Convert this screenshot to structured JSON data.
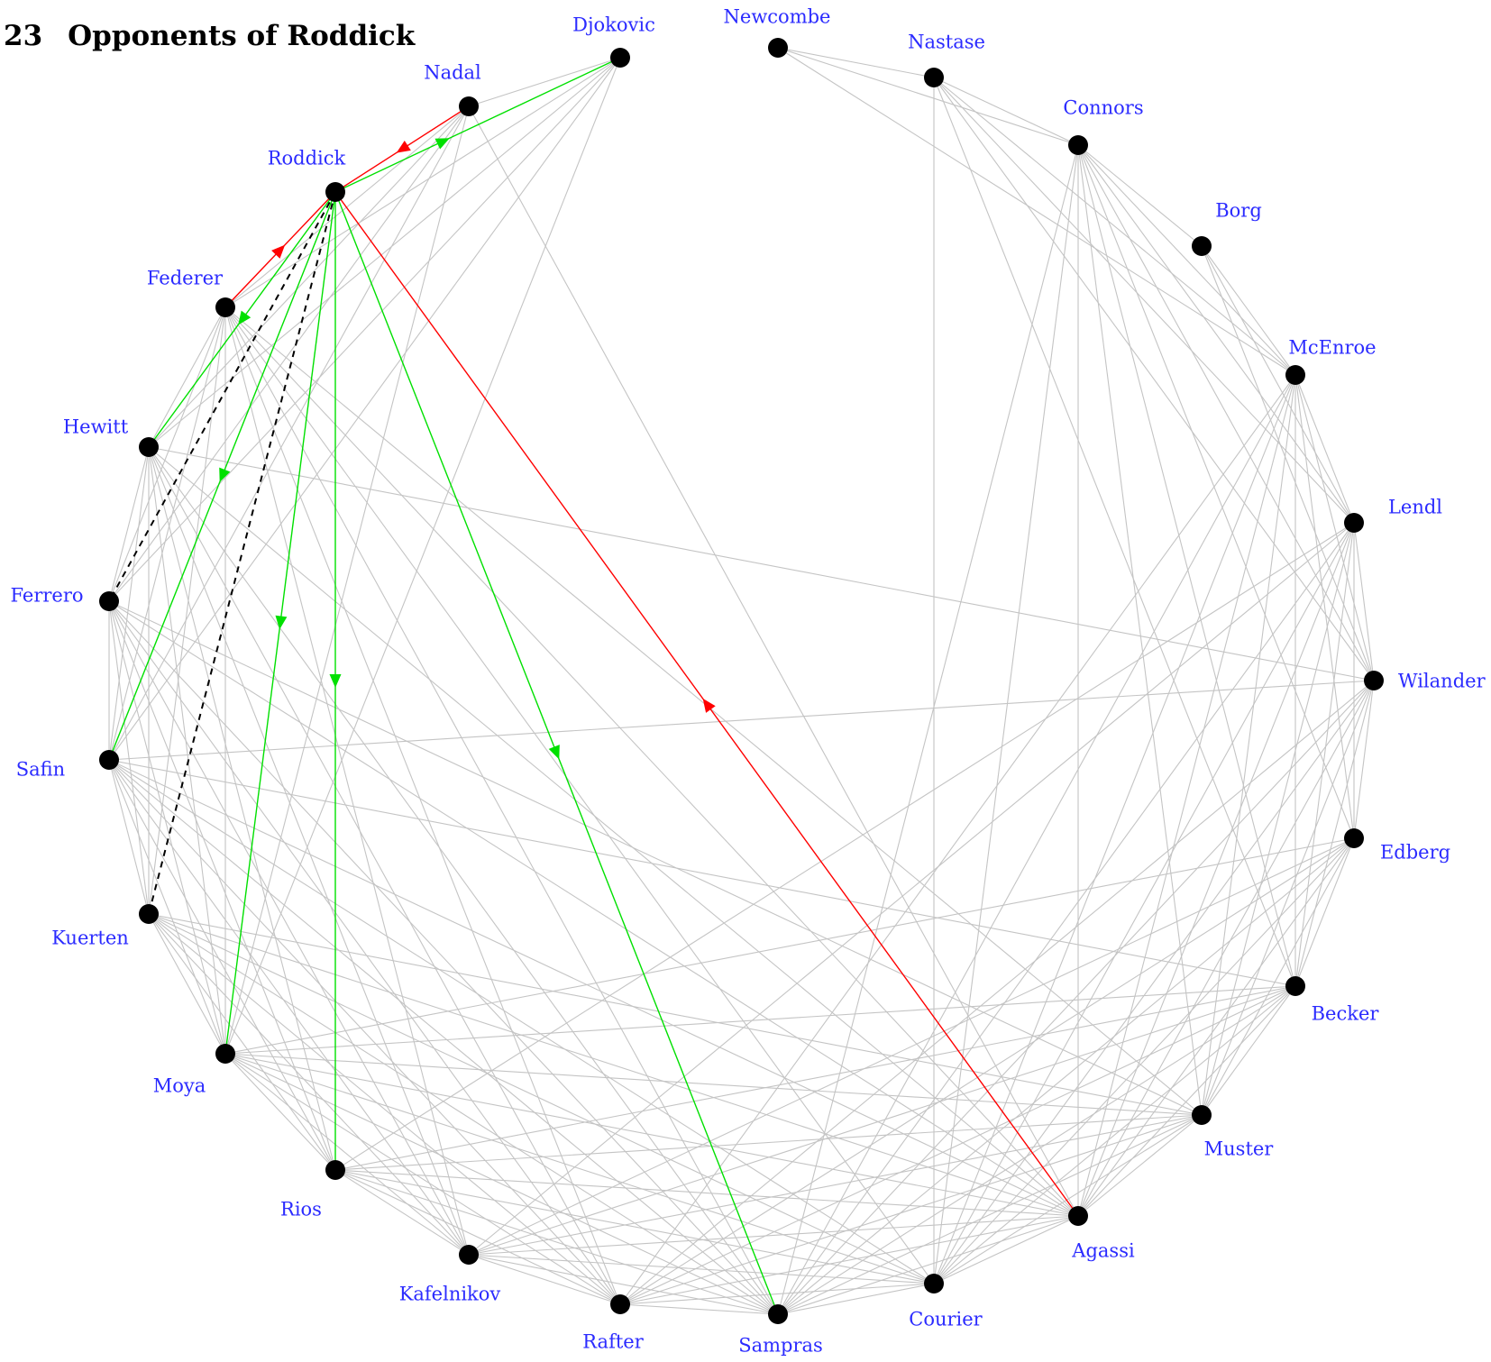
{
  "heading": {
    "number": "23",
    "title": "Opponents of Roddick"
  },
  "colors": {
    "node": "#000000",
    "label": "#2b2bff",
    "edge": "#c4c4c4",
    "win": "#00e000",
    "loss": "#ff0000",
    "dashed": "#000000"
  },
  "players": [
    "Djokovic",
    "Newcombe",
    "Nastase",
    "Connors",
    "Borg",
    "McEnroe",
    "Lendl",
    "Wilander",
    "Edberg",
    "Becker",
    "Muster",
    "Agassi",
    "Courier",
    "Sampras",
    "Rafter",
    "Kafelnikov",
    "Rios",
    "Moya",
    "Kuerten",
    "Safin",
    "Ferrero",
    "Hewitt",
    "Federer",
    "Roddick",
    "Nadal"
  ],
  "edges": [
    [
      "Djokovic",
      "Nadal"
    ],
    [
      "Djokovic",
      "Federer"
    ],
    [
      "Djokovic",
      "Hewitt"
    ],
    [
      "Djokovic",
      "Ferrero"
    ],
    [
      "Djokovic",
      "Safin"
    ],
    [
      "Djokovic",
      "Moya"
    ],
    [
      "Nadal",
      "Federer"
    ],
    [
      "Nadal",
      "Hewitt"
    ],
    [
      "Nadal",
      "Ferrero"
    ],
    [
      "Nadal",
      "Safin"
    ],
    [
      "Nadal",
      "Moya"
    ],
    [
      "Nadal",
      "Agassi"
    ],
    [
      "Newcombe",
      "Nastase"
    ],
    [
      "Newcombe",
      "Connors"
    ],
    [
      "Newcombe",
      "McEnroe"
    ],
    [
      "Nastase",
      "Connors"
    ],
    [
      "Nastase",
      "McEnroe"
    ],
    [
      "Nastase",
      "Lendl"
    ],
    [
      "Nastase",
      "Becker"
    ],
    [
      "Nastase",
      "Courier"
    ],
    [
      "Nastase",
      "Wilander"
    ],
    [
      "Connors",
      "Borg"
    ],
    [
      "Connors",
      "McEnroe"
    ],
    [
      "Connors",
      "Lendl"
    ],
    [
      "Connors",
      "Wilander"
    ],
    [
      "Connors",
      "Edberg"
    ],
    [
      "Connors",
      "Becker"
    ],
    [
      "Connors",
      "Muster"
    ],
    [
      "Connors",
      "Agassi"
    ],
    [
      "Connors",
      "Courier"
    ],
    [
      "Connors",
      "Sampras"
    ],
    [
      "Borg",
      "McEnroe"
    ],
    [
      "Borg",
      "Lendl"
    ],
    [
      "Borg",
      "Wilander"
    ],
    [
      "McEnroe",
      "Lendl"
    ],
    [
      "McEnroe",
      "Wilander"
    ],
    [
      "McEnroe",
      "Edberg"
    ],
    [
      "McEnroe",
      "Becker"
    ],
    [
      "McEnroe",
      "Muster"
    ],
    [
      "McEnroe",
      "Agassi"
    ],
    [
      "McEnroe",
      "Courier"
    ],
    [
      "McEnroe",
      "Sampras"
    ],
    [
      "McEnroe",
      "Rafter"
    ],
    [
      "Lendl",
      "Wilander"
    ],
    [
      "Lendl",
      "Edberg"
    ],
    [
      "Lendl",
      "Becker"
    ],
    [
      "Lendl",
      "Muster"
    ],
    [
      "Lendl",
      "Agassi"
    ],
    [
      "Lendl",
      "Courier"
    ],
    [
      "Lendl",
      "Sampras"
    ],
    [
      "Lendl",
      "Kafelnikov"
    ],
    [
      "Lendl",
      "Rios"
    ],
    [
      "Wilander",
      "Edberg"
    ],
    [
      "Wilander",
      "Becker"
    ],
    [
      "Wilander",
      "Muster"
    ],
    [
      "Wilander",
      "Agassi"
    ],
    [
      "Wilander",
      "Courier"
    ],
    [
      "Wilander",
      "Sampras"
    ],
    [
      "Wilander",
      "Rafter"
    ],
    [
      "Edberg",
      "Becker"
    ],
    [
      "Edberg",
      "Muster"
    ],
    [
      "Edberg",
      "Agassi"
    ],
    [
      "Edberg",
      "Courier"
    ],
    [
      "Edberg",
      "Sampras"
    ],
    [
      "Edberg",
      "Rafter"
    ],
    [
      "Edberg",
      "Kafelnikov"
    ],
    [
      "Edberg",
      "Moya"
    ],
    [
      "Becker",
      "Muster"
    ],
    [
      "Becker",
      "Agassi"
    ],
    [
      "Becker",
      "Courier"
    ],
    [
      "Becker",
      "Sampras"
    ],
    [
      "Becker",
      "Rafter"
    ],
    [
      "Becker",
      "Kafelnikov"
    ],
    [
      "Becker",
      "Rios"
    ],
    [
      "Becker",
      "Moya"
    ],
    [
      "Becker",
      "Safin"
    ],
    [
      "Muster",
      "Agassi"
    ],
    [
      "Muster",
      "Courier"
    ],
    [
      "Muster",
      "Sampras"
    ],
    [
      "Muster",
      "Rafter"
    ],
    [
      "Muster",
      "Kafelnikov"
    ],
    [
      "Muster",
      "Rios"
    ],
    [
      "Muster",
      "Moya"
    ],
    [
      "Muster",
      "Kuerten"
    ],
    [
      "Agassi",
      "Courier"
    ],
    [
      "Agassi",
      "Sampras"
    ],
    [
      "Agassi",
      "Rafter"
    ],
    [
      "Agassi",
      "Kafelnikov"
    ],
    [
      "Agassi",
      "Rios"
    ],
    [
      "Agassi",
      "Moya"
    ],
    [
      "Agassi",
      "Kuerten"
    ],
    [
      "Agassi",
      "Safin"
    ],
    [
      "Agassi",
      "Ferrero"
    ],
    [
      "Agassi",
      "Hewitt"
    ],
    [
      "Agassi",
      "Federer"
    ],
    [
      "Courier",
      "Sampras"
    ],
    [
      "Courier",
      "Rafter"
    ],
    [
      "Courier",
      "Kafelnikov"
    ],
    [
      "Courier",
      "Rios"
    ],
    [
      "Courier",
      "Moya"
    ],
    [
      "Courier",
      "Kuerten"
    ],
    [
      "Courier",
      "Safin"
    ],
    [
      "Sampras",
      "Rafter"
    ],
    [
      "Sampras",
      "Kafelnikov"
    ],
    [
      "Sampras",
      "Rios"
    ],
    [
      "Sampras",
      "Moya"
    ],
    [
      "Sampras",
      "Kuerten"
    ],
    [
      "Sampras",
      "Safin"
    ],
    [
      "Sampras",
      "Ferrero"
    ],
    [
      "Sampras",
      "Hewitt"
    ],
    [
      "Sampras",
      "Federer"
    ],
    [
      "Rafter",
      "Kafelnikov"
    ],
    [
      "Rafter",
      "Rios"
    ],
    [
      "Rafter",
      "Moya"
    ],
    [
      "Rafter",
      "Kuerten"
    ],
    [
      "Rafter",
      "Safin"
    ],
    [
      "Rafter",
      "Ferrero"
    ],
    [
      "Rafter",
      "Hewitt"
    ],
    [
      "Rafter",
      "Federer"
    ],
    [
      "Kafelnikov",
      "Rios"
    ],
    [
      "Kafelnikov",
      "Moya"
    ],
    [
      "Kafelnikov",
      "Kuerten"
    ],
    [
      "Kafelnikov",
      "Safin"
    ],
    [
      "Kafelnikov",
      "Ferrero"
    ],
    [
      "Kafelnikov",
      "Hewitt"
    ],
    [
      "Kafelnikov",
      "Federer"
    ],
    [
      "Rios",
      "Moya"
    ],
    [
      "Rios",
      "Kuerten"
    ],
    [
      "Rios",
      "Safin"
    ],
    [
      "Rios",
      "Ferrero"
    ],
    [
      "Rios",
      "Hewitt"
    ],
    [
      "Moya",
      "Kuerten"
    ],
    [
      "Moya",
      "Safin"
    ],
    [
      "Moya",
      "Ferrero"
    ],
    [
      "Moya",
      "Hewitt"
    ],
    [
      "Moya",
      "Federer"
    ],
    [
      "Kuerten",
      "Safin"
    ],
    [
      "Kuerten",
      "Ferrero"
    ],
    [
      "Kuerten",
      "Hewitt"
    ],
    [
      "Kuerten",
      "Federer"
    ],
    [
      "Safin",
      "Ferrero"
    ],
    [
      "Safin",
      "Hewitt"
    ],
    [
      "Safin",
      "Federer"
    ],
    [
      "Safin",
      "Wilander"
    ],
    [
      "Ferrero",
      "Hewitt"
    ],
    [
      "Ferrero",
      "Federer"
    ],
    [
      "Ferrero",
      "Muster"
    ],
    [
      "Hewitt",
      "Federer"
    ],
    [
      "Hewitt",
      "Wilander"
    ],
    [
      "Federer",
      "Muster"
    ],
    [
      "Federer",
      "Courier"
    ]
  ],
  "special_edges": [
    {
      "from": "Roddick",
      "to": "Djokovic",
      "style": "win",
      "arrow": 0.38
    },
    {
      "from": "Roddick",
      "to": "Hewitt",
      "style": "win",
      "arrow": 0.5
    },
    {
      "from": "Roddick",
      "to": "Safin",
      "style": "win",
      "arrow": 0.5
    },
    {
      "from": "Roddick",
      "to": "Moya",
      "style": "win",
      "arrow": 0.5
    },
    {
      "from": "Roddick",
      "to": "Rios",
      "style": "win",
      "arrow": 0.5
    },
    {
      "from": "Roddick",
      "to": "Sampras",
      "style": "win",
      "arrow": 0.5
    },
    {
      "from": "Nadal",
      "to": "Roddick",
      "style": "loss",
      "arrow": 0.5
    },
    {
      "from": "Federer",
      "to": "Roddick",
      "style": "loss",
      "arrow": 0.5
    },
    {
      "from": "Agassi",
      "to": "Roddick",
      "style": "loss",
      "arrow": 0.5
    },
    {
      "from": "Roddick",
      "to": "Ferrero",
      "style": "dashed",
      "arrow": null
    },
    {
      "from": "Roddick",
      "to": "Kuerten",
      "style": "dashed",
      "arrow": null
    }
  ]
}
